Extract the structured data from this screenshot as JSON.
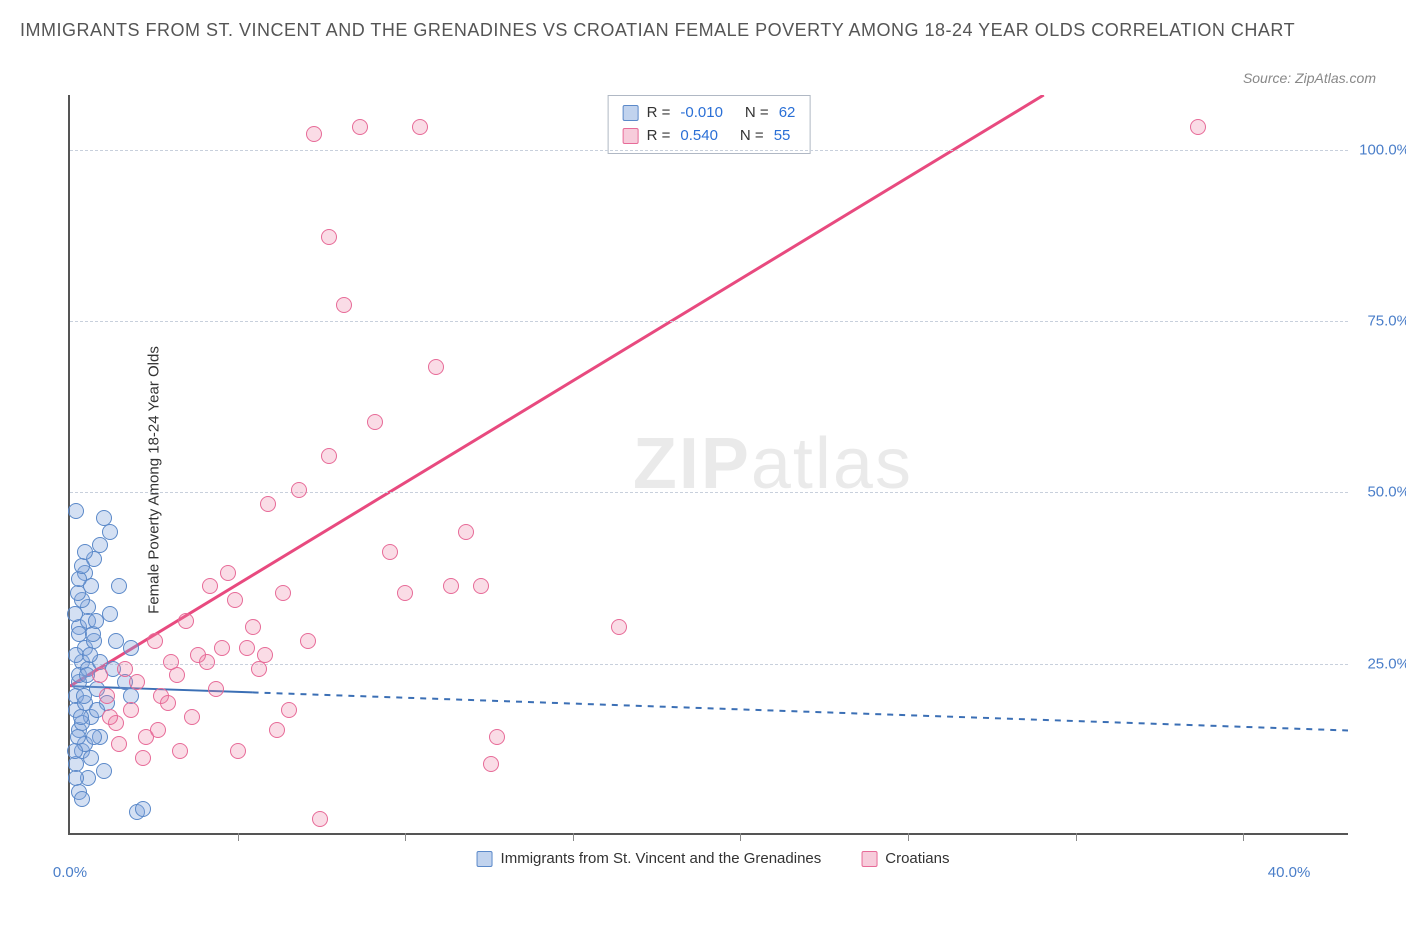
{
  "title": "IMMIGRANTS FROM ST. VINCENT AND THE GRENADINES VS CROATIAN FEMALE POVERTY AMONG 18-24 YEAR OLDS CORRELATION CHART",
  "source": "Source: ZipAtlas.com",
  "ylabel": "Female Poverty Among 18-24 Year Olds",
  "watermark_bold": "ZIP",
  "watermark_light": "atlas",
  "chart": {
    "type": "scatter",
    "xlim": [
      0,
      42
    ],
    "ylim": [
      0,
      108
    ],
    "xtick_left_label": "0.0%",
    "xtick_right_label": "40.0%",
    "xtick_left_pos": 0,
    "xtick_right_pos": 40,
    "yticks": [
      {
        "label": "25.0%",
        "value": 25
      },
      {
        "label": "50.0%",
        "value": 50
      },
      {
        "label": "75.0%",
        "value": 75
      },
      {
        "label": "100.0%",
        "value": 100
      }
    ],
    "xgrid_ticks": [
      5.5,
      11,
      16.5,
      22,
      27.5,
      33,
      38.5
    ],
    "background_color": "#ffffff",
    "grid_color": "#c8d0dc",
    "series": [
      {
        "name": "Immigrants from St. Vincent and the Grenadines",
        "class": "blue",
        "color_fill": "rgba(131,167,222,0.35)",
        "color_stroke": "#5b89c9",
        "R": "-0.010",
        "N": "62",
        "trend": {
          "x1": 0,
          "y1": 21.5,
          "x2": 42,
          "y2": 15,
          "solid_until": 6,
          "stroke": "#3b6fb5",
          "dash": "6,6",
          "width": 2
        },
        "points": [
          [
            0.2,
            20
          ],
          [
            0.3,
            22
          ],
          [
            0.2,
            18
          ],
          [
            0.4,
            25
          ],
          [
            0.5,
            27
          ],
          [
            0.3,
            30
          ],
          [
            0.6,
            33
          ],
          [
            0.7,
            36
          ],
          [
            0.5,
            38
          ],
          [
            0.8,
            40
          ],
          [
            0.3,
            15
          ],
          [
            0.4,
            12
          ],
          [
            0.2,
            10
          ],
          [
            0.6,
            8
          ],
          [
            0.7,
            17
          ],
          [
            0.5,
            19
          ],
          [
            0.3,
            23
          ],
          [
            0.8,
            28
          ],
          [
            0.6,
            31
          ],
          [
            0.4,
            34
          ],
          [
            1.0,
            42
          ],
          [
            1.1,
            46
          ],
          [
            1.3,
            44
          ],
          [
            0.9,
            21
          ],
          [
            1.2,
            19
          ],
          [
            1.4,
            24
          ],
          [
            1.5,
            28
          ],
          [
            1.3,
            32
          ],
          [
            1.6,
            36
          ],
          [
            1.0,
            14
          ],
          [
            1.8,
            22
          ],
          [
            2.0,
            20
          ],
          [
            2.2,
            3
          ],
          [
            2.4,
            3.5
          ],
          [
            2.0,
            27
          ],
          [
            0.2,
            26
          ],
          [
            0.3,
            29
          ],
          [
            0.5,
            13
          ],
          [
            0.4,
            16
          ],
          [
            0.6,
            24
          ],
          [
            0.7,
            11
          ],
          [
            0.8,
            14
          ],
          [
            0.9,
            18
          ],
          [
            1.0,
            25
          ],
          [
            1.1,
            9
          ],
          [
            0.2,
            47
          ],
          [
            0.15,
            32
          ],
          [
            0.25,
            35
          ],
          [
            0.3,
            37
          ],
          [
            0.4,
            39
          ],
          [
            0.5,
            41
          ],
          [
            0.2,
            8
          ],
          [
            0.3,
            6
          ],
          [
            0.4,
            5
          ],
          [
            0.15,
            12
          ],
          [
            0.25,
            14
          ],
          [
            0.35,
            17
          ],
          [
            0.45,
            20
          ],
          [
            0.55,
            23
          ],
          [
            0.65,
            26
          ],
          [
            0.75,
            29
          ],
          [
            0.85,
            31
          ]
        ]
      },
      {
        "name": "Croatians",
        "class": "pink",
        "color_fill": "rgba(236,128,165,0.28)",
        "color_stroke": "#e76b98",
        "R": "0.540",
        "N": "55",
        "trend": {
          "x1": 0,
          "y1": 21.5,
          "x2": 32,
          "y2": 108,
          "stroke": "#e84a7f",
          "width": 3
        },
        "points": [
          [
            1.5,
            16
          ],
          [
            2.0,
            18
          ],
          [
            2.5,
            14
          ],
          [
            3.0,
            20
          ],
          [
            3.5,
            23
          ],
          [
            4.0,
            17
          ],
          [
            4.5,
            25
          ],
          [
            5.0,
            27
          ],
          [
            5.5,
            12
          ],
          [
            6.0,
            30
          ],
          [
            6.5,
            48
          ],
          [
            7.0,
            35
          ],
          [
            7.5,
            50
          ],
          [
            8.0,
            102
          ],
          [
            8.5,
            87
          ],
          [
            9.0,
            77
          ],
          [
            9.5,
            103
          ],
          [
            10.0,
            60
          ],
          [
            10.5,
            41
          ],
          [
            11.0,
            35
          ],
          [
            11.5,
            103
          ],
          [
            12.0,
            68
          ],
          [
            12.5,
            36
          ],
          [
            13.0,
            44
          ],
          [
            13.5,
            36
          ],
          [
            14.0,
            14
          ],
          [
            8.5,
            55
          ],
          [
            2.2,
            22
          ],
          [
            3.2,
            19
          ],
          [
            4.2,
            26
          ],
          [
            5.2,
            38
          ],
          [
            5.8,
            27
          ],
          [
            6.2,
            24
          ],
          [
            1.8,
            24
          ],
          [
            2.8,
            28
          ],
          [
            3.8,
            31
          ],
          [
            4.8,
            21
          ],
          [
            6.8,
            15
          ],
          [
            7.2,
            18
          ],
          [
            1.2,
            20
          ],
          [
            18.0,
            30
          ],
          [
            8.2,
            2
          ],
          [
            13.8,
            10
          ],
          [
            1.0,
            23
          ],
          [
            1.3,
            17
          ],
          [
            1.6,
            13
          ],
          [
            2.4,
            11
          ],
          [
            3.6,
            12
          ],
          [
            37.0,
            103
          ],
          [
            5.4,
            34
          ],
          [
            4.6,
            36
          ],
          [
            6.4,
            26
          ],
          [
            7.8,
            28
          ],
          [
            2.9,
            15
          ],
          [
            3.3,
            25
          ]
        ]
      }
    ]
  },
  "legend_box": {
    "rows": [
      {
        "class": "blue",
        "R_label": "R =",
        "R": "-0.010",
        "N_label": "N =",
        "N": "62"
      },
      {
        "class": "pink",
        "R_label": "R =",
        "R": "0.540",
        "N_label": "N =",
        "N": "55"
      }
    ]
  },
  "bottom_legend": [
    {
      "class": "blue",
      "label": "Immigrants from St. Vincent and the Grenadines"
    },
    {
      "class": "pink",
      "label": "Croatians"
    }
  ]
}
